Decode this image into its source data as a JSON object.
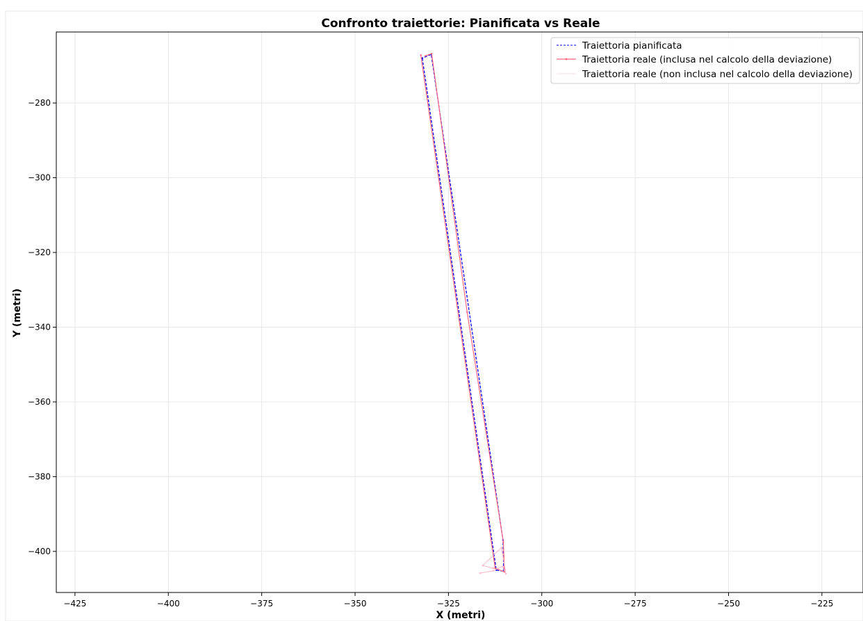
{
  "chart_data": {
    "type": "line",
    "title": "Confronto traiettorie: Pianificata vs Reale",
    "xlabel": "X (metri)",
    "ylabel": "Y (metri)",
    "xlim": [
      -430,
      -214
    ],
    "ylim": [
      -411,
      -261
    ],
    "x_ticks": [
      -425,
      -400,
      -375,
      -350,
      -325,
      -300,
      -275,
      -250,
      -225
    ],
    "y_ticks": [
      -280,
      -300,
      -320,
      -340,
      -360,
      -380,
      -400
    ],
    "grid": true,
    "legend_position": "top-right",
    "series": [
      {
        "name": "Traiettoria pianificata",
        "color": "#0000ff",
        "style": "dashed",
        "points": [
          [
            -332.0,
            -268.0
          ],
          [
            -312.2,
            -405.0
          ],
          [
            -310.2,
            -405.3
          ],
          [
            -310.4,
            -397.0
          ],
          [
            -329.6,
            -267.0
          ],
          [
            -332.0,
            -268.0
          ]
        ]
      },
      {
        "name": "Traiettoria reale (inclusa nel calcolo della deviazione)",
        "color": "#ff6680",
        "style": "solid",
        "points": [
          [
            -332.4,
            -267.2
          ],
          [
            -321.0,
            -346.0
          ],
          [
            -312.5,
            -404.5
          ],
          [
            -310.0,
            -405.5
          ],
          [
            -310.3,
            -397.5
          ],
          [
            -320.0,
            -336.0
          ],
          [
            -329.5,
            -266.8
          ],
          [
            -331.2,
            -267.4
          ]
        ]
      },
      {
        "name": "Traiettoria reale (non inclusa nel calcolo della deviazione)",
        "color": "#ffb3c6",
        "style": "solid",
        "points": [
          [
            -316.5,
            -405.8
          ],
          [
            -313.0,
            -405.2
          ],
          [
            -310.5,
            -404.0
          ],
          [
            -309.6,
            -406.0
          ],
          [
            -310.8,
            -399.0
          ],
          [
            -315.8,
            -403.8
          ],
          [
            -313.0,
            -404.5
          ]
        ]
      }
    ]
  }
}
